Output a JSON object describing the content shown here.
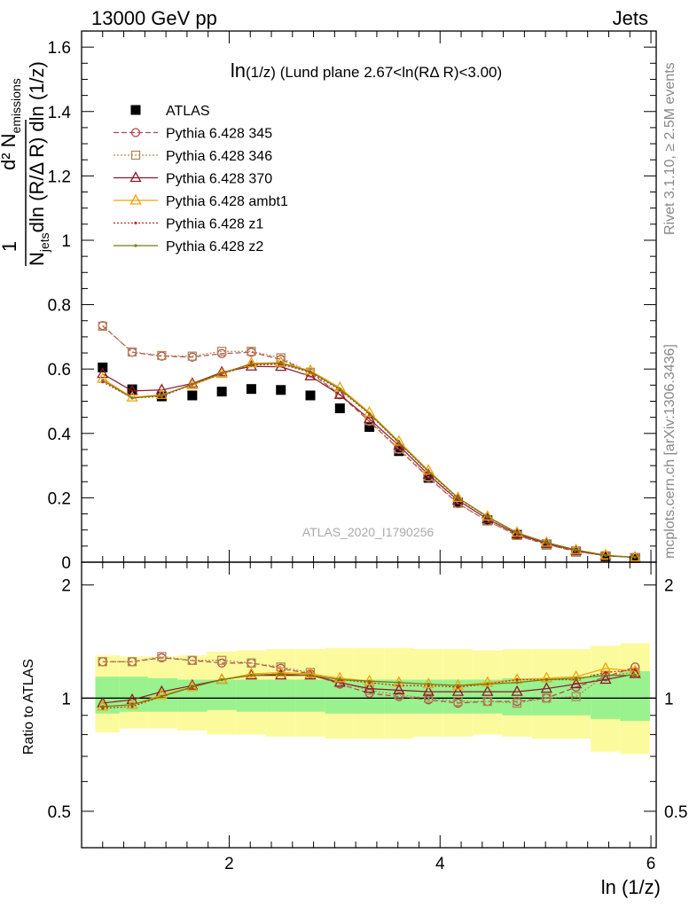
{
  "header": {
    "left": "13000 GeV pp",
    "right": "Jets"
  },
  "side_texts": {
    "rivet": "Rivet 3.1.10, ≥ 2.5M events",
    "mcplots": "mcplots.cern.ch [arXiv:1306.3436]"
  },
  "watermark": "ATLAS_2020_I1790256",
  "colors": {
    "atlas": "#000000",
    "p345": "#b5464e",
    "p346": "#b08a55",
    "p370": "#8b1a2b",
    "ambt1": "#f0a30a",
    "z1": "#c8281e",
    "z2": "#7a7a10",
    "band_inner": "#99f28e",
    "band_outer": "#fbfb9e"
  },
  "chart_data": [
    {
      "type": "line",
      "title_main": "ln",
      "title_rest": "(1/z) (Lund plane 2.67<ln(RΔ R)<3.00)",
      "ylabel_lines": [
        "d² N",
        "emissions",
        "1",
        "N",
        "jets",
        "dln (R/Δ R) dln (1/z)"
      ],
      "xlabel": "ln (1/z)",
      "xlim": [
        0.6,
        6.05
      ],
      "ylim": [
        0,
        1.65
      ],
      "yticks": [
        "0",
        "0.2",
        "0.4",
        "0.6",
        "0.8",
        "1",
        "1.2",
        "1.4",
        "1.6"
      ],
      "x": [
        0.8,
        1.08,
        1.36,
        1.65,
        1.93,
        2.21,
        2.49,
        2.77,
        3.05,
        3.33,
        3.61,
        3.89,
        4.17,
        4.45,
        4.73,
        5.01,
        5.29,
        5.57,
        5.85
      ],
      "legend_position": "top-left",
      "series": [
        {
          "name": "ATLAS",
          "key": "atlas",
          "values": [
            0.605,
            0.537,
            0.515,
            0.518,
            0.53,
            0.538,
            0.535,
            0.518,
            0.478,
            0.42,
            0.345,
            0.262,
            0.185,
            0.13,
            0.085,
            0.055,
            0.033,
            0.018,
            0.013
          ]
        },
        {
          "name": "Pythia 6.428 345",
          "key": "p345",
          "values": [
            0.735,
            0.652,
            0.64,
            0.637,
            0.648,
            0.652,
            0.63,
            0.588,
            0.52,
            0.437,
            0.35,
            0.263,
            0.182,
            0.128,
            0.083,
            0.055,
            0.033,
            0.021,
            0.015
          ]
        },
        {
          "name": "Pythia 6.428 346",
          "key": "p346",
          "values": [
            0.733,
            0.653,
            0.642,
            0.64,
            0.655,
            0.655,
            0.635,
            0.59,
            0.523,
            0.44,
            0.352,
            0.266,
            0.183,
            0.128,
            0.083,
            0.055,
            0.033,
            0.02,
            0.014
          ]
        },
        {
          "name": "Pythia 6.428 370",
          "key": "p370",
          "values": [
            0.585,
            0.532,
            0.535,
            0.555,
            0.59,
            0.608,
            0.607,
            0.578,
            0.52,
            0.445,
            0.362,
            0.272,
            0.192,
            0.134,
            0.087,
            0.058,
            0.036,
            0.02,
            0.015
          ]
        },
        {
          "name": "Pythia 6.428 ambt1",
          "key": "ambt1",
          "values": [
            0.57,
            0.512,
            0.52,
            0.55,
            0.585,
            0.618,
            0.62,
            0.595,
            0.542,
            0.465,
            0.375,
            0.285,
            0.2,
            0.142,
            0.092,
            0.061,
            0.038,
            0.022,
            0.015
          ]
        },
        {
          "name": "Pythia 6.428 z1",
          "key": "z1",
          "values": [
            0.56,
            0.51,
            0.515,
            0.552,
            0.585,
            0.612,
            0.615,
            0.59,
            0.535,
            0.46,
            0.37,
            0.28,
            0.198,
            0.14,
            0.09,
            0.06,
            0.037,
            0.021,
            0.015
          ]
        },
        {
          "name": "Pythia 6.428 z2",
          "key": "z2",
          "values": [
            0.565,
            0.51,
            0.518,
            0.553,
            0.588,
            0.615,
            0.618,
            0.592,
            0.538,
            0.462,
            0.372,
            0.282,
            0.2,
            0.141,
            0.091,
            0.061,
            0.038,
            0.021,
            0.015
          ]
        }
      ]
    },
    {
      "type": "line",
      "ylabel": "Ratio to ATLAS",
      "xlabel": "ln (1/z)",
      "xlim": [
        0.6,
        6.05
      ],
      "ylim": [
        0.4,
        2.3
      ],
      "log_scale_y": true,
      "xticks": [
        "2",
        "4",
        "6"
      ],
      "yticks": [
        "0.5",
        "1",
        "2"
      ],
      "x": [
        0.8,
        1.08,
        1.36,
        1.65,
        1.93,
        2.21,
        2.49,
        2.77,
        3.05,
        3.33,
        3.61,
        3.89,
        4.17,
        4.45,
        4.73,
        5.01,
        5.29,
        5.57,
        5.85
      ],
      "band_edges": [
        0.73,
        0.96,
        1.23,
        1.51,
        1.79,
        2.07,
        2.35,
        2.63,
        2.91,
        3.19,
        3.47,
        3.75,
        4.03,
        4.31,
        4.59,
        4.87,
        5.15,
        5.43,
        5.71,
        5.99
      ],
      "band_inner": [
        [
          0.91,
          1.14
        ],
        [
          0.92,
          1.14
        ],
        [
          0.92,
          1.13
        ],
        [
          0.92,
          1.12
        ],
        [
          0.93,
          1.12
        ],
        [
          0.92,
          1.12
        ],
        [
          0.92,
          1.12
        ],
        [
          0.92,
          1.12
        ],
        [
          0.91,
          1.12
        ],
        [
          0.91,
          1.12
        ],
        [
          0.91,
          1.12
        ],
        [
          0.91,
          1.12
        ],
        [
          0.91,
          1.12
        ],
        [
          0.91,
          1.12
        ],
        [
          0.9,
          1.13
        ],
        [
          0.9,
          1.13
        ],
        [
          0.9,
          1.14
        ],
        [
          0.88,
          1.16
        ],
        [
          0.87,
          1.18
        ]
      ],
      "band_outer": [
        [
          0.81,
          1.3
        ],
        [
          0.83,
          1.29
        ],
        [
          0.83,
          1.29
        ],
        [
          0.82,
          1.3
        ],
        [
          0.8,
          1.33
        ],
        [
          0.8,
          1.34
        ],
        [
          0.79,
          1.35
        ],
        [
          0.79,
          1.35
        ],
        [
          0.78,
          1.36
        ],
        [
          0.78,
          1.36
        ],
        [
          0.78,
          1.36
        ],
        [
          0.79,
          1.35
        ],
        [
          0.79,
          1.35
        ],
        [
          0.8,
          1.34
        ],
        [
          0.79,
          1.35
        ],
        [
          0.78,
          1.35
        ],
        [
          0.78,
          1.35
        ],
        [
          0.72,
          1.38
        ],
        [
          0.71,
          1.4
        ]
      ],
      "series": [
        {
          "name": "Pythia 6.428 345",
          "key": "p345",
          "values": [
            1.25,
            1.25,
            1.28,
            1.26,
            1.24,
            1.24,
            1.2,
            1.16,
            1.09,
            1.03,
            1.01,
            0.99,
            0.97,
            0.98,
            0.98,
            1.0,
            1.07,
            1.14,
            1.21
          ]
        },
        {
          "name": "Pythia 6.428 346",
          "key": "p346",
          "values": [
            1.25,
            1.25,
            1.29,
            1.26,
            1.26,
            1.24,
            1.21,
            1.17,
            1.1,
            1.05,
            1.02,
            1.0,
            0.98,
            0.98,
            0.97,
            1.0,
            1.01,
            1.15,
            1.17
          ]
        },
        {
          "name": "Pythia 6.428 370",
          "key": "p370",
          "values": [
            0.97,
            0.99,
            1.04,
            1.08,
            1.12,
            1.15,
            1.15,
            1.15,
            1.1,
            1.06,
            1.05,
            1.04,
            1.04,
            1.04,
            1.04,
            1.06,
            1.09,
            1.12,
            1.16
          ]
        },
        {
          "name": "Pythia 6.428 ambt1",
          "key": "ambt1",
          "values": [
            0.95,
            0.96,
            1.02,
            1.07,
            1.12,
            1.16,
            1.17,
            1.16,
            1.13,
            1.11,
            1.1,
            1.09,
            1.08,
            1.1,
            1.12,
            1.13,
            1.14,
            1.2,
            1.18
          ]
        },
        {
          "name": "Pythia 6.428 z1",
          "key": "z1",
          "values": [
            0.94,
            0.95,
            1.01,
            1.07,
            1.12,
            1.15,
            1.16,
            1.15,
            1.12,
            1.1,
            1.08,
            1.08,
            1.07,
            1.09,
            1.12,
            1.12,
            1.12,
            1.17,
            1.19
          ]
        },
        {
          "name": "Pythia 6.428 z2",
          "key": "z2",
          "values": [
            0.95,
            0.96,
            1.01,
            1.07,
            1.12,
            1.15,
            1.16,
            1.15,
            1.12,
            1.11,
            1.1,
            1.09,
            1.08,
            1.09,
            1.1,
            1.12,
            1.13,
            1.15,
            1.15
          ]
        }
      ]
    }
  ]
}
